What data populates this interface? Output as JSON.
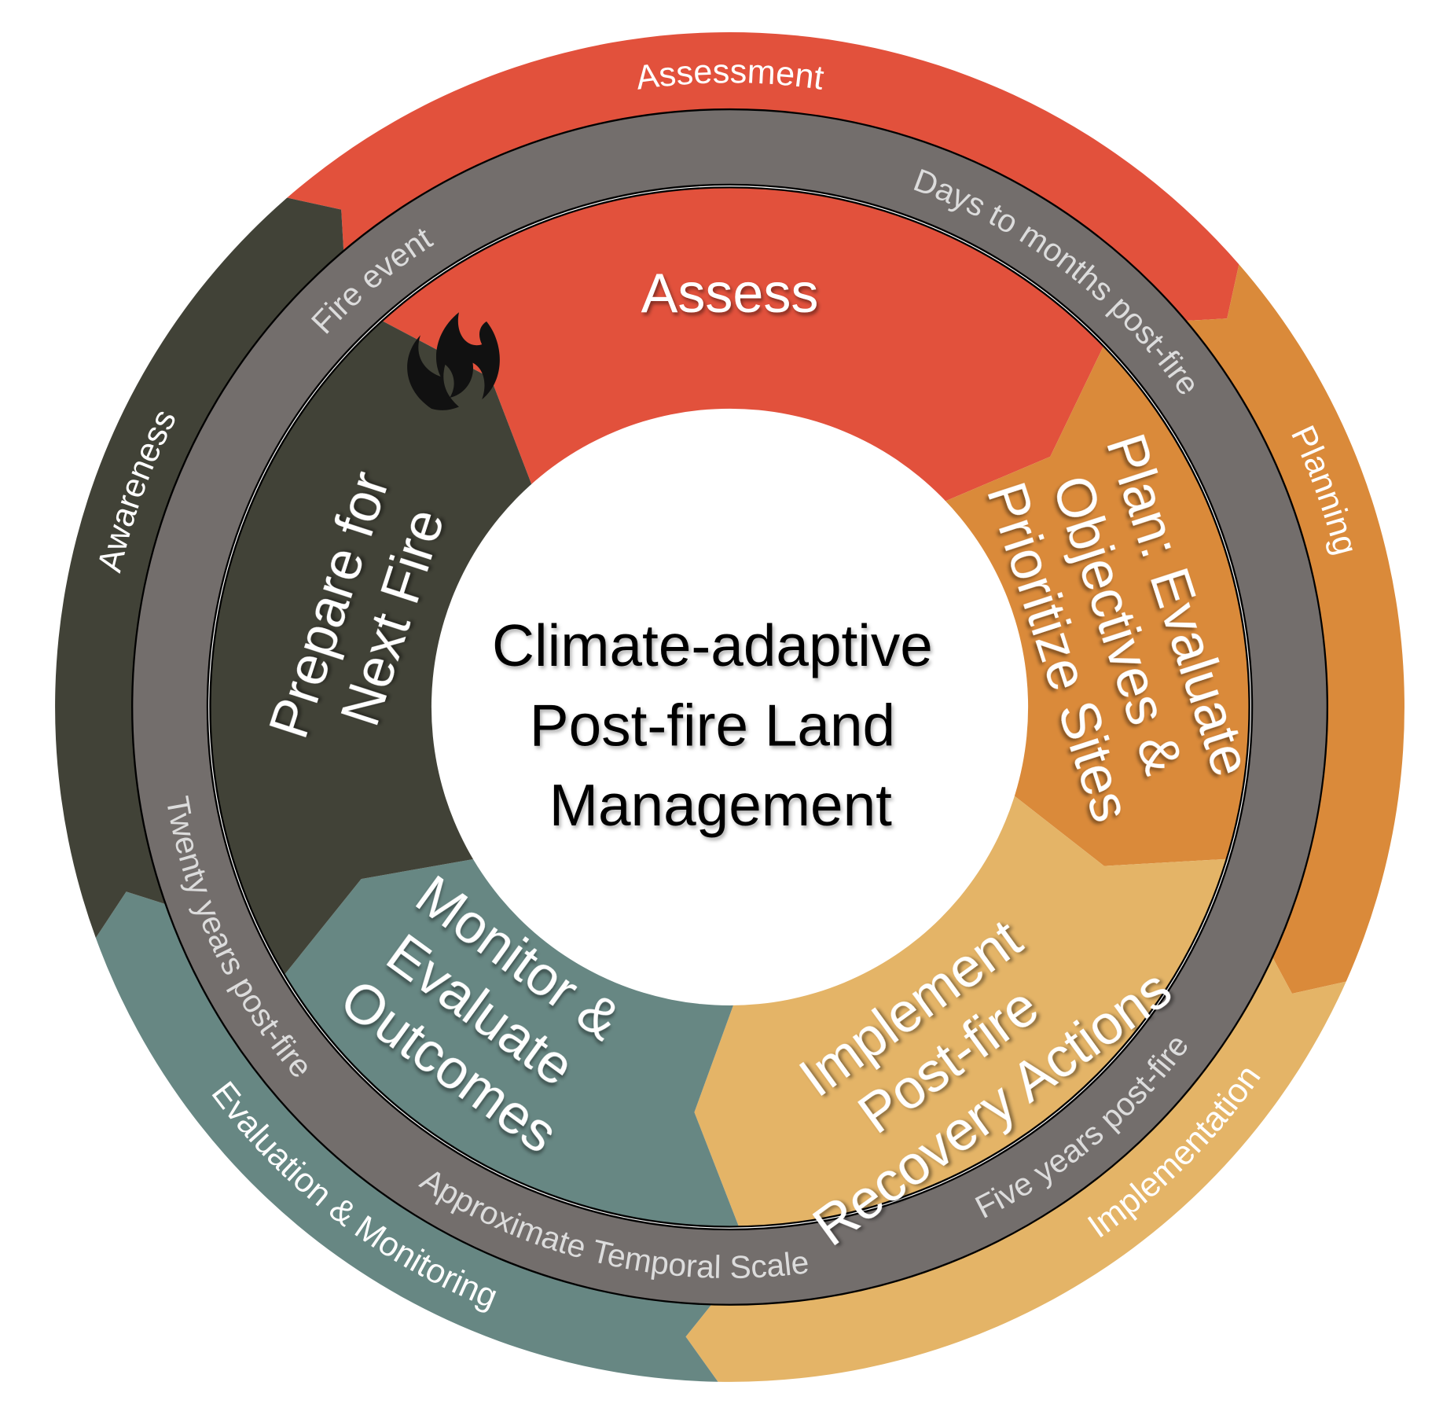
{
  "center_title": [
    "Climate-adaptive",
    "Post-fire Land",
    "Management"
  ],
  "stages": [
    {
      "lines": [
        "Assess"
      ],
      "color": "#E2513C"
    },
    {
      "lines": [
        "Plan: Evaluate",
        "Objectives &",
        "Prioritize Sites"
      ],
      "color": "#DA8A3A"
    },
    {
      "lines": [
        "Implement",
        "Post-fire",
        "Recovery Actions"
      ],
      "color": "#E4B467"
    },
    {
      "lines": [
        "Monitor &",
        "Evaluate",
        "Outcomes"
      ],
      "color": "#678783"
    },
    {
      "lines": [
        "Prepare for",
        "Next Fire"
      ],
      "color": "#414237"
    }
  ],
  "phases": [
    {
      "label": "Assessment",
      "color": "#E2513C"
    },
    {
      "label": "Planning",
      "color": "#DA8A3A"
    },
    {
      "label": "Implementation",
      "color": "#E4B467"
    },
    {
      "label": "Evaluation & Monitoring",
      "color": "#678783"
    },
    {
      "label": "Awareness",
      "color": "#414237"
    }
  ],
  "temporal_ring": {
    "color": "#736E6C",
    "labels": {
      "fire_event": "Fire event",
      "days_to_months": "Days to months post-fire",
      "five_years": "Five years post-fire",
      "scale_title": "Approximate Temporal Scale",
      "twenty_years": "Twenty years post-fire"
    }
  },
  "icons": {
    "fire": "flame-icon"
  }
}
